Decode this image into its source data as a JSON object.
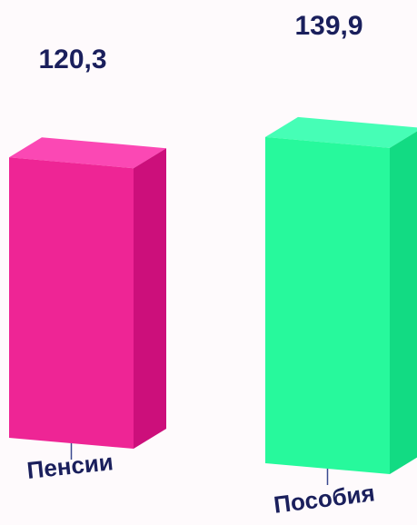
{
  "chart_data": {
    "type": "bar",
    "categories": [
      "Пенсии",
      "Пособия"
    ],
    "values": [
      120.3,
      139.9
    ],
    "value_labels": [
      "120,3",
      "139,9"
    ],
    "colors": {
      "bars": [
        {
          "front": "#ee2595",
          "top": "#fb48b4",
          "side": "#cc0f7b"
        },
        {
          "front": "#27f99c",
          "top": "#46feb6",
          "side": "#12db83"
        }
      ],
      "axis_tick": "#3a4a90",
      "text": "#1a1f5c"
    },
    "title": "",
    "xlabel": "",
    "ylabel": "",
    "legend": false,
    "grid": false
  }
}
